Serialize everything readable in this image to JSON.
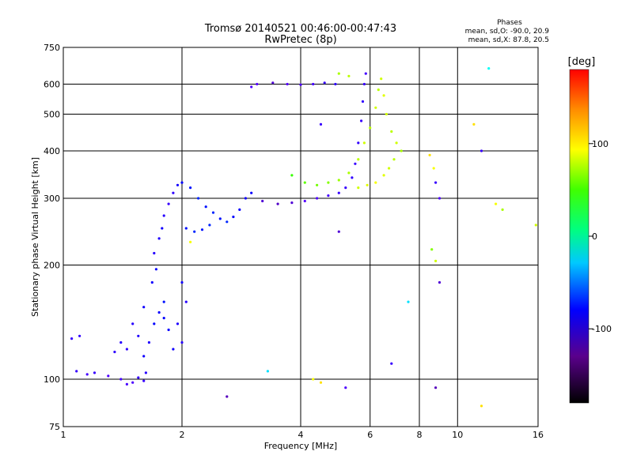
{
  "chart_data": {
    "type": "scatter",
    "title": "Tromsø 20140521 00:46:00-00:47:43",
    "subtitle": "RwPretec (8p)",
    "xlabel": "Frequency [MHz]",
    "ylabel": "Stationary phase Virtual Height [km]",
    "xscale": "log",
    "yscale": "log",
    "xlim": [
      1,
      16
    ],
    "ylim": [
      75,
      750
    ],
    "xticks": [
      1,
      2,
      4,
      6,
      8,
      10,
      16
    ],
    "yticks": [
      75,
      100,
      200,
      300,
      400,
      500,
      600,
      750
    ],
    "grid": true,
    "stats_title": "Phases",
    "stats_lines": [
      "mean, sd,O: -90.0, 20.9",
      "mean, sd,X: 87.8, 20.5"
    ],
    "colorbar": {
      "label": "[deg]",
      "range": [
        -180,
        180
      ],
      "ticks": [
        -100,
        0,
        100
      ]
    },
    "series": [
      {
        "points": [
          [
            1.05,
            128,
            -120
          ],
          [
            1.1,
            130,
            -115
          ],
          [
            1.08,
            105,
            -120
          ],
          [
            1.15,
            103,
            -125
          ],
          [
            1.2,
            104,
            -120
          ],
          [
            1.3,
            102,
            -130
          ],
          [
            1.4,
            100,
            -125
          ],
          [
            1.5,
            98,
            -130
          ],
          [
            1.6,
            99,
            -120
          ],
          [
            1.45,
            97,
            -128
          ],
          [
            1.55,
            101,
            -118
          ],
          [
            1.62,
            104,
            -110
          ],
          [
            1.6,
            115,
            -100
          ],
          [
            1.65,
            125,
            -105
          ],
          [
            1.7,
            140,
            -90
          ],
          [
            1.75,
            150,
            -95
          ],
          [
            1.8,
            160,
            -85
          ],
          [
            1.68,
            180,
            -100
          ],
          [
            1.72,
            195,
            -95
          ],
          [
            1.7,
            215,
            -110
          ],
          [
            1.75,
            235,
            -105
          ],
          [
            1.78,
            250,
            -100
          ],
          [
            1.8,
            270,
            -110
          ],
          [
            1.85,
            290,
            -120
          ],
          [
            1.9,
            310,
            -115
          ],
          [
            1.95,
            325,
            -100
          ],
          [
            2.0,
            330,
            -90
          ],
          [
            2.1,
            320,
            -85
          ],
          [
            2.2,
            300,
            -80
          ],
          [
            2.3,
            285,
            -85
          ],
          [
            2.4,
            275,
            -80
          ],
          [
            2.5,
            265,
            -85
          ],
          [
            2.6,
            260,
            -80
          ],
          [
            2.7,
            268,
            -90
          ],
          [
            2.8,
            280,
            -95
          ],
          [
            2.9,
            300,
            -100
          ],
          [
            3.0,
            310,
            -95
          ],
          [
            2.05,
            250,
            -85
          ],
          [
            2.15,
            245,
            -80
          ],
          [
            2.25,
            248,
            -85
          ],
          [
            2.35,
            255,
            -80
          ],
          [
            2.0,
            180,
            -100
          ],
          [
            2.05,
            160,
            -110
          ],
          [
            1.95,
            140,
            -105
          ],
          [
            2.0,
            125,
            -110
          ],
          [
            1.9,
            120,
            -100
          ],
          [
            1.85,
            135,
            -95
          ],
          [
            1.8,
            145,
            -90
          ],
          [
            1.6,
            155,
            -100
          ],
          [
            1.5,
            140,
            -110
          ],
          [
            1.55,
            130,
            -105
          ],
          [
            1.45,
            120,
            -115
          ],
          [
            1.4,
            125,
            -110
          ],
          [
            1.35,
            118,
            -115
          ],
          [
            3.2,
            295,
            -140
          ],
          [
            3.5,
            290,
            -145
          ],
          [
            3.8,
            292,
            -140
          ],
          [
            4.1,
            295,
            -135
          ],
          [
            4.4,
            300,
            -130
          ],
          [
            4.7,
            305,
            -125
          ],
          [
            5.0,
            310,
            -120
          ],
          [
            5.2,
            320,
            -120
          ],
          [
            5.4,
            340,
            -115
          ],
          [
            5.5,
            370,
            -120
          ],
          [
            5.6,
            420,
            -115
          ],
          [
            5.7,
            480,
            -120
          ],
          [
            5.75,
            540,
            -115
          ],
          [
            5.8,
            600,
            -120
          ],
          [
            5.85,
            640,
            -125
          ],
          [
            4.9,
            600,
            -115
          ],
          [
            4.6,
            605,
            -120
          ],
          [
            4.3,
            600,
            -125
          ],
          [
            4.0,
            598,
            -130
          ],
          [
            3.7,
            600,
            -135
          ],
          [
            3.4,
            605,
            -140
          ],
          [
            3.1,
            600,
            -135
          ],
          [
            3.0,
            590,
            -130
          ],
          [
            3.8,
            345,
            60
          ],
          [
            4.1,
            330,
            70
          ],
          [
            4.4,
            325,
            75
          ],
          [
            4.7,
            330,
            80
          ],
          [
            5.0,
            335,
            85
          ],
          [
            5.3,
            350,
            90
          ],
          [
            5.6,
            380,
            95
          ],
          [
            5.8,
            420,
            100
          ],
          [
            6.0,
            460,
            95
          ],
          [
            6.2,
            520,
            100
          ],
          [
            6.3,
            580,
            95
          ],
          [
            6.4,
            620,
            100
          ],
          [
            6.5,
            560,
            105
          ],
          [
            6.6,
            500,
            100
          ],
          [
            6.8,
            450,
            95
          ],
          [
            7.0,
            420,
            100
          ],
          [
            7.2,
            400,
            90
          ],
          [
            6.9,
            380,
            95
          ],
          [
            6.7,
            360,
            100
          ],
          [
            6.5,
            345,
            105
          ],
          [
            6.2,
            330,
            110
          ],
          [
            5.9,
            325,
            105
          ],
          [
            5.6,
            320,
            100
          ],
          [
            5.0,
            640,
            90
          ],
          [
            5.3,
            630,
            95
          ],
          [
            8.5,
            390,
            120
          ],
          [
            8.7,
            360,
            110
          ],
          [
            8.8,
            330,
            -120
          ],
          [
            9.0,
            300,
            -130
          ],
          [
            8.6,
            220,
            80
          ],
          [
            8.8,
            205,
            100
          ],
          [
            9.0,
            180,
            -140
          ],
          [
            11.0,
            470,
            120
          ],
          [
            12.0,
            660,
            -20
          ],
          [
            11.5,
            400,
            -120
          ],
          [
            12.5,
            290,
            110
          ],
          [
            13.0,
            280,
            90
          ],
          [
            15.8,
            255,
            100
          ],
          [
            4.3,
            100,
            110
          ],
          [
            4.5,
            98,
            120
          ],
          [
            5.2,
            95,
            -130
          ],
          [
            2.6,
            90,
            -150
          ],
          [
            3.3,
            105,
            -30
          ],
          [
            8.8,
            95,
            -150
          ],
          [
            11.5,
            85,
            120
          ],
          [
            7.5,
            160,
            -30
          ],
          [
            5.0,
            245,
            -140
          ],
          [
            6.8,
            110,
            -120
          ],
          [
            2.1,
            230,
            110
          ],
          [
            4.5,
            470,
            -120
          ]
        ]
      }
    ]
  }
}
